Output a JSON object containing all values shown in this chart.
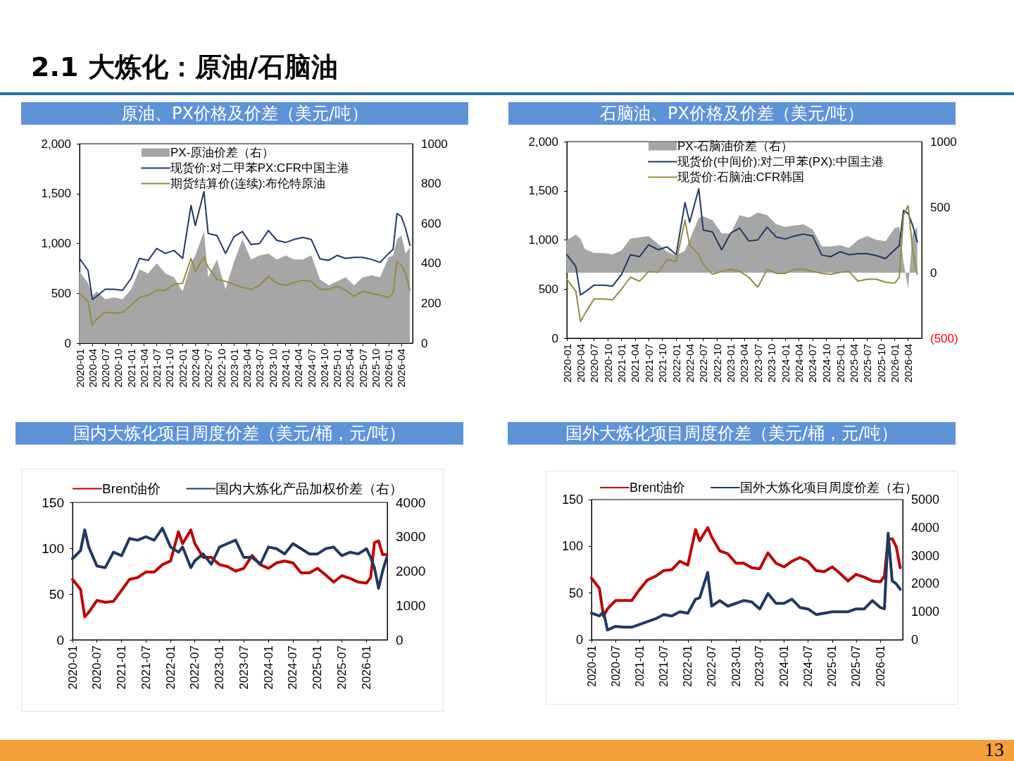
{
  "chart_data": [
    {
      "type": "line",
      "title": "原油、PX价格及价差（美元/吨）",
      "annotations": [
        "2.1 大炼化：原油/石脑油"
      ],
      "legend": "top",
      "marker": "none",
      "x": [
        "2020-01",
        "2020-03",
        "2020-04",
        "2020-05",
        "2020-07",
        "2020-09",
        "2020-11",
        "2021-01",
        "2021-03",
        "2021-05",
        "2021-07",
        "2021-09",
        "2021-11",
        "2022-01",
        "2022-03",
        "2022-04",
        "2022-06",
        "2022-07",
        "2022-09",
        "2022-11",
        "2023-01",
        "2023-03",
        "2023-05",
        "2023-07",
        "2023-09",
        "2023-11",
        "2024-01",
        "2024-03",
        "2024-05",
        "2024-07",
        "2024-09",
        "2024-11",
        "2025-01",
        "2025-03",
        "2025-05",
        "2025-07",
        "2025-09",
        "2025-11",
        "2026-01",
        "2026-02",
        "2026-03",
        "2026-04",
        "2026-05",
        "2026-06"
      ],
      "xlim": [
        "2020-01",
        "2026-06-20"
      ],
      "xticks": [
        "2020-01",
        "2020-04",
        "2020-07",
        "2020-10",
        "2021-01",
        "2021-04",
        "2021-07",
        "2021-10",
        "2022-01",
        "2022-04",
        "2022-07",
        "2022-10",
        "2023-01",
        "2023-04",
        "2023-07",
        "2023-10",
        "2024-01",
        "2024-04",
        "2024-07",
        "2024-10",
        "2025-01",
        "2025-04",
        "2025-07",
        "2025-10",
        "2026-01",
        "2026-04"
      ],
      "ylim": [
        0,
        2000
      ],
      "yticks": [
        0,
        {
          "value": 500,
          "label": "500"
        },
        {
          "value": 1000,
          "label": "1,000"
        },
        {
          "value": 1500,
          "label": "1,500"
        },
        {
          "value": 2000,
          "label": "2,000"
        }
      ],
      "y2lim": [
        0,
        1000
      ],
      "y2ticks": [
        0,
        200,
        400,
        600,
        800,
        1000
      ],
      "series": [
        {
          "name": "PX-原油价差（右）",
          "type": "area",
          "axis": "y2",
          "color": "#a6a6a6",
          "values": [
            360,
            300,
            238,
            260,
            220,
            230,
            220,
            270,
            370,
            350,
            400,
            350,
            330,
            260,
            400,
            440,
            560,
            330,
            420,
            270,
            410,
            520,
            420,
            440,
            450,
            420,
            440,
            420,
            420,
            440,
            320,
            290,
            310,
            330,
            290,
            330,
            340,
            330,
            430,
            440,
            520,
            540,
            450,
            480
          ]
        },
        {
          "name": "现货价:对二甲苯PX:CFR中国主港",
          "color": "#1f3864",
          "values": [
            850,
            730,
            440,
            470,
            540,
            540,
            530,
            650,
            850,
            830,
            950,
            900,
            930,
            850,
            1380,
            1180,
            1520,
            1100,
            1080,
            900,
            1070,
            1120,
            990,
            1000,
            1130,
            1030,
            1010,
            1040,
            1060,
            1040,
            845,
            830,
            880,
            850,
            860,
            860,
            840,
            810,
            900,
            940,
            1300,
            1270,
            1150,
            980
          ]
        },
        {
          "name": "期货结算价(连续):布伦特原油",
          "color": "#968a3a",
          "values": [
            500,
            420,
            180,
            240,
            310,
            300,
            310,
            380,
            460,
            480,
            530,
            530,
            590,
            600,
            850,
            720,
            860,
            760,
            640,
            620,
            590,
            560,
            540,
            580,
            670,
            600,
            580,
            610,
            630,
            620,
            540,
            540,
            570,
            530,
            470,
            520,
            500,
            480,
            460,
            500,
            820,
            780,
            700,
            530
          ]
        }
      ]
    },
    {
      "type": "line",
      "title": "石脑油、PX价格及价差（美元/吨）",
      "legend": "top",
      "marker": "none",
      "x": [
        "2020-01",
        "2020-03",
        "2020-04",
        "2020-05",
        "2020-07",
        "2020-09",
        "2020-11",
        "2021-01",
        "2021-03",
        "2021-05",
        "2021-07",
        "2021-09",
        "2021-11",
        "2022-01",
        "2022-03",
        "2022-04",
        "2022-06",
        "2022-07",
        "2022-09",
        "2022-11",
        "2023-01",
        "2023-03",
        "2023-05",
        "2023-07",
        "2023-09",
        "2023-11",
        "2024-01",
        "2024-03",
        "2024-05",
        "2024-07",
        "2024-09",
        "2024-11",
        "2025-01",
        "2025-03",
        "2025-05",
        "2025-07",
        "2025-09",
        "2025-11",
        "2026-01",
        "2026-02",
        "2026-03",
        "2026-04",
        "2026-05",
        "2026-06"
      ],
      "xlim": [
        "2020-01",
        "2026-07"
      ],
      "xticks": [
        "2020-01",
        "2020-04",
        "2020-07",
        "2020-10",
        "2021-01",
        "2021-04",
        "2021-07",
        "2021-10",
        "2022-01",
        "2022-04",
        "2022-07",
        "2022-10",
        "2023-01",
        "2023-04",
        "2023-07",
        "2023-10",
        "2024-01",
        "2024-04",
        "2024-07",
        "2024-10",
        "2025-01",
        "2025-04",
        "2025-07",
        "2025-10",
        "2026-01",
        "2026-04"
      ],
      "ylim": [
        0,
        2000
      ],
      "yticks": [
        0,
        {
          "value": 500,
          "label": "500"
        },
        {
          "value": 1000,
          "label": "1,000"
        },
        {
          "value": 1500,
          "label": "1,500"
        },
        {
          "value": 2000,
          "label": "2,000"
        }
      ],
      "y2lim": [
        -500,
        1000
      ],
      "y2ticks": [
        {
          "value": -500,
          "label": "(500)"
        },
        0,
        500,
        1000
      ],
      "series": [
        {
          "name": "PX-石脑油价差（右）",
          "type": "area",
          "axis": "y2",
          "color": "#a6a6a6",
          "values": [
            250,
            290,
            260,
            180,
            150,
            150,
            140,
            170,
            260,
            270,
            280,
            220,
            160,
            130,
            170,
            250,
            420,
            430,
            400,
            300,
            300,
            440,
            420,
            460,
            440,
            370,
            350,
            360,
            370,
            330,
            200,
            200,
            210,
            190,
            250,
            280,
            250,
            240,
            340,
            350,
            80,
            -120,
            300,
            350
          ]
        },
        {
          "name": "现货价(中间价):对二甲苯(PX):中国主港",
          "color": "#1f3864",
          "values": [
            850,
            730,
            440,
            470,
            540,
            540,
            530,
            650,
            850,
            830,
            950,
            900,
            930,
            850,
            1380,
            1180,
            1520,
            1100,
            1080,
            900,
            1070,
            1120,
            990,
            1000,
            1130,
            1030,
            1010,
            1040,
            1060,
            1040,
            845,
            830,
            880,
            850,
            860,
            860,
            840,
            810,
            900,
            940,
            1300,
            1270,
            1150,
            980
          ]
        },
        {
          "name": "现货价:石脑油:CFR韩国",
          "color": "#968a3a",
          "values": [
            600,
            480,
            170,
            250,
            400,
            400,
            390,
            500,
            620,
            580,
            680,
            670,
            800,
            780,
            1200,
            950,
            850,
            750,
            650,
            680,
            700,
            680,
            620,
            520,
            700,
            660,
            660,
            700,
            700,
            680,
            660,
            650,
            670,
            680,
            580,
            600,
            600,
            570,
            560,
            620,
            1250,
            1350,
            900,
            650
          ]
        }
      ]
    },
    {
      "type": "line",
      "title": "国内大炼化项目周度价差（美元/桶，元/吨）",
      "legend": "top",
      "marker": "none",
      "x": [
        "2020-01",
        "2020-03",
        "2020-04",
        "2020-05",
        "2020-07",
        "2020-09",
        "2020-11",
        "2021-01",
        "2021-03",
        "2021-05",
        "2021-07",
        "2021-09",
        "2021-11",
        "2022-01",
        "2022-03",
        "2022-04",
        "2022-06",
        "2022-07",
        "2022-09",
        "2022-11",
        "2023-01",
        "2023-03",
        "2023-05",
        "2023-07",
        "2023-09",
        "2023-11",
        "2024-01",
        "2024-03",
        "2024-05",
        "2024-07",
        "2024-09",
        "2024-11",
        "2025-01",
        "2025-03",
        "2025-05",
        "2025-07",
        "2025-09",
        "2025-11",
        "2026-01",
        "2026-02",
        "2026-03",
        "2026-04",
        "2026-05",
        "2026-06"
      ],
      "xlim": [
        "2020-01",
        "2026-06-05"
      ],
      "xticks": [
        "2020-01",
        "2020-07",
        "2021-01",
        "2021-07",
        "2022-01",
        "2022-07",
        "2023-01",
        "2023-07",
        "2024-01",
        "2024-07",
        "2025-01",
        "2025-07",
        "2026-01"
      ],
      "ylim": [
        0,
        150
      ],
      "yticks": [
        0,
        50,
        100,
        150
      ],
      "y2lim": [
        0,
        4000
      ],
      "y2ticks": [
        0,
        1000,
        2000,
        3000,
        4000
      ],
      "series": [
        {
          "name": "Brent油价",
          "color": "#c00000",
          "values": [
            66,
            55,
            25,
            30,
            43,
            41,
            42,
            54,
            66,
            68,
            74,
            74,
            82,
            86,
            118,
            105,
            120,
            105,
            90,
            90,
            82,
            80,
            75,
            78,
            92,
            82,
            78,
            84,
            86,
            84,
            73,
            73,
            78,
            71,
            63,
            70,
            67,
            63,
            62,
            68,
            106,
            108,
            93,
            93
          ]
        },
        {
          "name": "国内大炼化产品加权价差（右）",
          "axis": "y2",
          "color": "#1f3a60",
          "values": [
            2360,
            2600,
            3200,
            2700,
            2150,
            2100,
            2550,
            2450,
            2950,
            2900,
            3000,
            2900,
            3250,
            2700,
            2550,
            2700,
            2100,
            2300,
            2500,
            2200,
            2700,
            2800,
            2900,
            2400,
            2400,
            2200,
            2700,
            2650,
            2500,
            2800,
            2650,
            2500,
            2500,
            2650,
            2700,
            2450,
            2550,
            2500,
            2650,
            2400,
            2100,
            1500,
            2000,
            2400
          ]
        }
      ]
    },
    {
      "type": "line",
      "title": "国外大炼化项目周度价差（美元/桶，元/吨）",
      "annotations": [
        "13"
      ],
      "legend": "top",
      "marker": "none",
      "x": [
        "2020-01",
        "2020-03",
        "2020-04",
        "2020-05",
        "2020-07",
        "2020-09",
        "2020-11",
        "2021-01",
        "2021-03",
        "2021-05",
        "2021-07",
        "2021-09",
        "2021-11",
        "2022-01",
        "2022-03",
        "2022-04",
        "2022-06",
        "2022-07",
        "2022-09",
        "2022-11",
        "2023-01",
        "2023-03",
        "2023-05",
        "2023-07",
        "2023-09",
        "2023-11",
        "2024-01",
        "2024-03",
        "2024-05",
        "2024-07",
        "2024-09",
        "2024-11",
        "2025-01",
        "2025-03",
        "2025-05",
        "2025-07",
        "2025-09",
        "2025-11",
        "2026-01",
        "2026-02",
        "2026-03",
        "2026-04",
        "2026-05",
        "2026-06"
      ],
      "xlim": [
        "2020-01",
        "2026-06-20"
      ],
      "xticks": [
        "2020-01",
        "2020-07",
        "2021-01",
        "2021-07",
        "2022-01",
        "2022-07",
        "2023-01",
        "2023-07",
        "2024-01",
        "2024-07",
        "2025-01",
        "2025-07",
        "2026-01"
      ],
      "ylim": [
        0,
        150
      ],
      "yticks": [
        0,
        50,
        100,
        150
      ],
      "y2lim": [
        0,
        5000
      ],
      "y2ticks": [
        0,
        1000,
        2000,
        3000,
        4000,
        5000
      ],
      "series": [
        {
          "name": "Brent油价",
          "color": "#c00000",
          "values": [
            66,
            55,
            25,
            33,
            42,
            42,
            42,
            54,
            64,
            68,
            74,
            75,
            84,
            80,
            118,
            106,
            120,
            110,
            95,
            92,
            82,
            82,
            77,
            76,
            93,
            82,
            78,
            84,
            88,
            84,
            74,
            73,
            78,
            71,
            63,
            70,
            67,
            63,
            62,
            68,
            108,
            108,
            100,
            77
          ]
        },
        {
          "name": "国外大炼化项目周度价差（右）",
          "axis": "y2",
          "color": "#1f3a60",
          "values": [
            950,
            850,
            1000,
            350,
            480,
            450,
            450,
            550,
            650,
            750,
            900,
            850,
            1000,
            950,
            1450,
            1500,
            2400,
            1200,
            1400,
            1200,
            1300,
            1400,
            1350,
            1100,
            1650,
            1300,
            1300,
            1450,
            1150,
            1100,
            900,
            950,
            1000,
            1000,
            1000,
            1100,
            1100,
            1400,
            1150,
            1100,
            3800,
            2100,
            2000,
            1800
          ]
        }
      ]
    }
  ]
}
